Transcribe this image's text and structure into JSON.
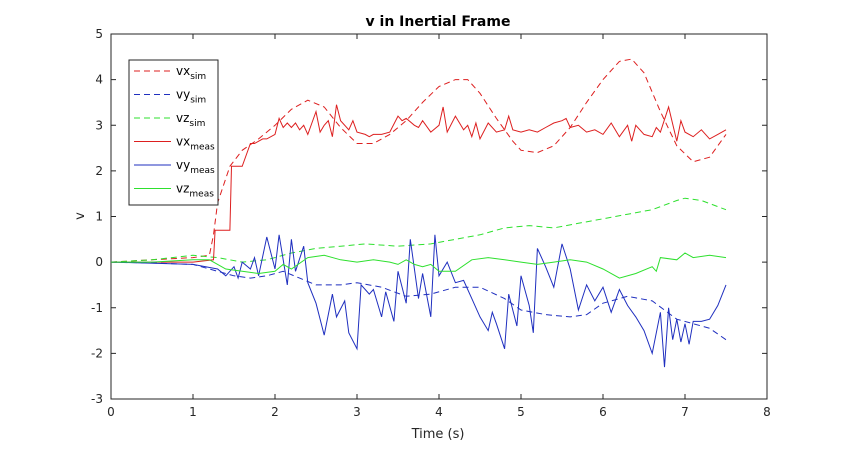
{
  "chart_data": {
    "type": "line",
    "title": "v in Inertial Frame",
    "xlabel": "Time (s)",
    "ylabel": "v",
    "xlim": [
      0,
      8
    ],
    "ylim": [
      -3,
      5
    ],
    "xticks": [
      "0",
      "1",
      "2",
      "3",
      "4",
      "5",
      "6",
      "7",
      "8"
    ],
    "yticks": [
      "-3",
      "-2",
      "-1",
      "0",
      "1",
      "2",
      "3",
      "4",
      "5"
    ],
    "grid": false,
    "legend_position": "top-left",
    "series": [
      {
        "name": "vx",
        "sub": "sim",
        "color": "#dd1f1f",
        "style": "dashed",
        "x": [
          0,
          0.5,
          1.0,
          1.2,
          1.25,
          1.3,
          1.45,
          1.6,
          1.8,
          2.0,
          2.2,
          2.4,
          2.6,
          2.8,
          3.0,
          3.2,
          3.4,
          3.6,
          3.8,
          4.0,
          4.2,
          4.35,
          4.5,
          4.7,
          4.9,
          5.0,
          5.2,
          5.4,
          5.6,
          5.8,
          6.0,
          6.2,
          6.35,
          6.5,
          6.7,
          6.9,
          7.1,
          7.3,
          7.5
        ],
        "y": [
          0,
          0.05,
          0.1,
          0.15,
          0.6,
          1.3,
          2.1,
          2.45,
          2.7,
          3.0,
          3.35,
          3.55,
          3.4,
          2.95,
          2.6,
          2.6,
          2.8,
          3.1,
          3.5,
          3.85,
          4.0,
          4.0,
          3.7,
          3.15,
          2.65,
          2.45,
          2.4,
          2.55,
          2.95,
          3.5,
          4.0,
          4.4,
          4.45,
          4.15,
          3.3,
          2.55,
          2.2,
          2.3,
          2.8
        ]
      },
      {
        "name": "vy",
        "sub": "sim",
        "color": "#1f2fbf",
        "style": "dashed",
        "x": [
          0,
          0.5,
          1.0,
          1.3,
          1.5,
          1.7,
          1.9,
          2.1,
          2.3,
          2.5,
          2.8,
          3.0,
          3.3,
          3.6,
          3.9,
          4.2,
          4.5,
          4.8,
          5.0,
          5.3,
          5.6,
          5.8,
          6.0,
          6.3,
          6.6,
          6.9,
          7.1,
          7.3,
          7.5
        ],
        "y": [
          0,
          -0.02,
          -0.05,
          -0.2,
          -0.3,
          -0.35,
          -0.3,
          -0.2,
          -0.35,
          -0.5,
          -0.5,
          -0.45,
          -0.55,
          -0.75,
          -0.7,
          -0.55,
          -0.55,
          -0.8,
          -1.05,
          -1.15,
          -1.2,
          -1.15,
          -0.9,
          -0.75,
          -0.85,
          -1.25,
          -1.35,
          -1.45,
          -1.7
        ]
      },
      {
        "name": "vz",
        "sub": "sim",
        "color": "#2ee02e",
        "style": "dashed",
        "x": [
          0,
          0.5,
          1.0,
          1.3,
          1.6,
          1.9,
          2.2,
          2.5,
          2.8,
          3.1,
          3.5,
          3.9,
          4.2,
          4.5,
          4.8,
          5.1,
          5.4,
          5.7,
          6.0,
          6.3,
          6.6,
          6.9,
          7.0,
          7.2,
          7.5
        ],
        "y": [
          0,
          0.05,
          0.15,
          0.1,
          0.0,
          0.05,
          0.2,
          0.3,
          0.35,
          0.4,
          0.35,
          0.4,
          0.5,
          0.6,
          0.75,
          0.8,
          0.75,
          0.85,
          0.95,
          1.05,
          1.15,
          1.35,
          1.4,
          1.35,
          1.15
        ]
      },
      {
        "name": "vx",
        "sub": "meas",
        "color": "#dd1f1f",
        "style": "solid",
        "x": [
          0,
          1.0,
          1.25,
          1.27,
          1.45,
          1.47,
          1.6,
          1.7,
          1.75,
          1.85,
          1.9,
          2.0,
          2.05,
          2.1,
          2.15,
          2.2,
          2.25,
          2.3,
          2.35,
          2.4,
          2.45,
          2.5,
          2.55,
          2.6,
          2.65,
          2.7,
          2.75,
          2.8,
          2.9,
          2.95,
          3.0,
          3.1,
          3.15,
          3.2,
          3.3,
          3.4,
          3.5,
          3.55,
          3.6,
          3.7,
          3.75,
          3.8,
          3.9,
          4.0,
          4.05,
          4.1,
          4.2,
          4.3,
          4.35,
          4.4,
          4.45,
          4.5,
          4.6,
          4.7,
          4.8,
          4.85,
          4.9,
          5.0,
          5.1,
          5.2,
          5.3,
          5.4,
          5.5,
          5.55,
          5.6,
          5.7,
          5.8,
          5.9,
          6.0,
          6.1,
          6.2,
          6.3,
          6.35,
          6.4,
          6.5,
          6.6,
          6.65,
          6.7,
          6.8,
          6.9,
          6.95,
          7.0,
          7.1,
          7.2,
          7.3,
          7.4,
          7.5
        ],
        "y": [
          0,
          0,
          0.05,
          0.7,
          0.7,
          2.1,
          2.1,
          2.6,
          2.6,
          2.7,
          2.7,
          2.8,
          3.15,
          2.95,
          3.05,
          2.95,
          3.05,
          2.9,
          3.0,
          2.8,
          3.05,
          3.3,
          2.85,
          3.0,
          3.1,
          2.75,
          3.45,
          3.1,
          2.9,
          3.1,
          2.85,
          2.8,
          2.75,
          2.8,
          2.8,
          2.85,
          3.2,
          3.1,
          3.15,
          3.0,
          2.95,
          3.1,
          2.85,
          3.0,
          3.4,
          2.85,
          3.2,
          2.9,
          3.0,
          2.75,
          3.05,
          2.7,
          3.05,
          2.85,
          2.9,
          3.2,
          2.9,
          2.85,
          2.9,
          2.85,
          2.95,
          3.05,
          3.1,
          3.15,
          2.95,
          3.0,
          2.85,
          2.9,
          2.8,
          3.05,
          2.75,
          3.0,
          2.65,
          3.0,
          2.8,
          2.75,
          2.95,
          2.85,
          3.4,
          2.65,
          3.1,
          2.85,
          2.75,
          2.9,
          2.7,
          2.8,
          2.9
        ]
      },
      {
        "name": "vy",
        "sub": "meas",
        "color": "#1f2fbf",
        "style": "solid",
        "x": [
          0,
          1.0,
          1.3,
          1.4,
          1.5,
          1.55,
          1.6,
          1.7,
          1.75,
          1.8,
          1.9,
          2.0,
          2.05,
          2.15,
          2.2,
          2.25,
          2.35,
          2.4,
          2.5,
          2.6,
          2.7,
          2.75,
          2.85,
          2.9,
          3.0,
          3.05,
          3.15,
          3.2,
          3.3,
          3.35,
          3.45,
          3.5,
          3.6,
          3.65,
          3.75,
          3.8,
          3.9,
          3.95,
          4.0,
          4.1,
          4.2,
          4.3,
          4.4,
          4.5,
          4.6,
          4.65,
          4.7,
          4.8,
          4.85,
          4.95,
          5.0,
          5.1,
          5.15,
          5.2,
          5.3,
          5.4,
          5.5,
          5.6,
          5.7,
          5.8,
          5.9,
          6.0,
          6.1,
          6.2,
          6.3,
          6.4,
          6.5,
          6.6,
          6.7,
          6.75,
          6.8,
          6.85,
          6.9,
          6.95,
          7.0,
          7.05,
          7.1,
          7.2,
          7.3,
          7.4,
          7.5
        ],
        "y": [
          0,
          -0.05,
          -0.15,
          -0.3,
          -0.1,
          -0.35,
          0.0,
          -0.15,
          0.1,
          -0.3,
          0.55,
          -0.15,
          0.6,
          -0.5,
          0.5,
          -0.2,
          0.35,
          -0.45,
          -0.9,
          -1.6,
          -0.7,
          -1.2,
          -0.85,
          -1.55,
          -1.9,
          -0.5,
          -0.7,
          -0.6,
          -1.2,
          -0.65,
          -1.3,
          -0.2,
          -0.9,
          0.5,
          -0.8,
          -0.25,
          -1.2,
          0.6,
          -0.3,
          0.0,
          -0.45,
          -0.4,
          -0.8,
          -1.2,
          -1.5,
          -1.1,
          -1.35,
          -1.9,
          -0.7,
          -1.4,
          -0.3,
          -0.95,
          -1.55,
          0.3,
          -0.1,
          -0.55,
          0.4,
          -0.15,
          -1.05,
          -0.5,
          -0.85,
          -0.55,
          -1.1,
          -0.6,
          -0.95,
          -1.2,
          -1.5,
          -2.0,
          -1.1,
          -2.3,
          -1.0,
          -1.7,
          -1.25,
          -1.75,
          -1.35,
          -1.8,
          -1.3,
          -1.3,
          -1.25,
          -0.95,
          -0.5
        ]
      },
      {
        "name": "vz",
        "sub": "meas",
        "color": "#2ee02e",
        "style": "solid",
        "x": [
          0,
          0.5,
          1.0,
          1.2,
          1.4,
          1.6,
          1.8,
          2.0,
          2.1,
          2.2,
          2.4,
          2.6,
          2.8,
          3.0,
          3.2,
          3.4,
          3.5,
          3.6,
          3.7,
          3.8,
          3.9,
          4.0,
          4.2,
          4.4,
          4.6,
          4.8,
          5.0,
          5.2,
          5.4,
          5.6,
          5.8,
          6.0,
          6.2,
          6.4,
          6.6,
          6.65,
          6.7,
          6.9,
          7.0,
          7.1,
          7.3,
          7.5
        ],
        "y": [
          0,
          0,
          0.05,
          0.05,
          -0.15,
          -0.2,
          -0.25,
          -0.2,
          -0.05,
          -0.15,
          0.1,
          0.15,
          0.05,
          0.0,
          0.05,
          0.0,
          -0.05,
          0.05,
          -0.05,
          -0.1,
          -0.05,
          -0.2,
          -0.2,
          0.05,
          0.1,
          0.05,
          0.0,
          -0.05,
          0.0,
          0.05,
          0.0,
          -0.15,
          -0.35,
          -0.25,
          -0.1,
          -0.2,
          0.1,
          0.05,
          0.2,
          0.1,
          0.15,
          0.1
        ]
      }
    ]
  }
}
